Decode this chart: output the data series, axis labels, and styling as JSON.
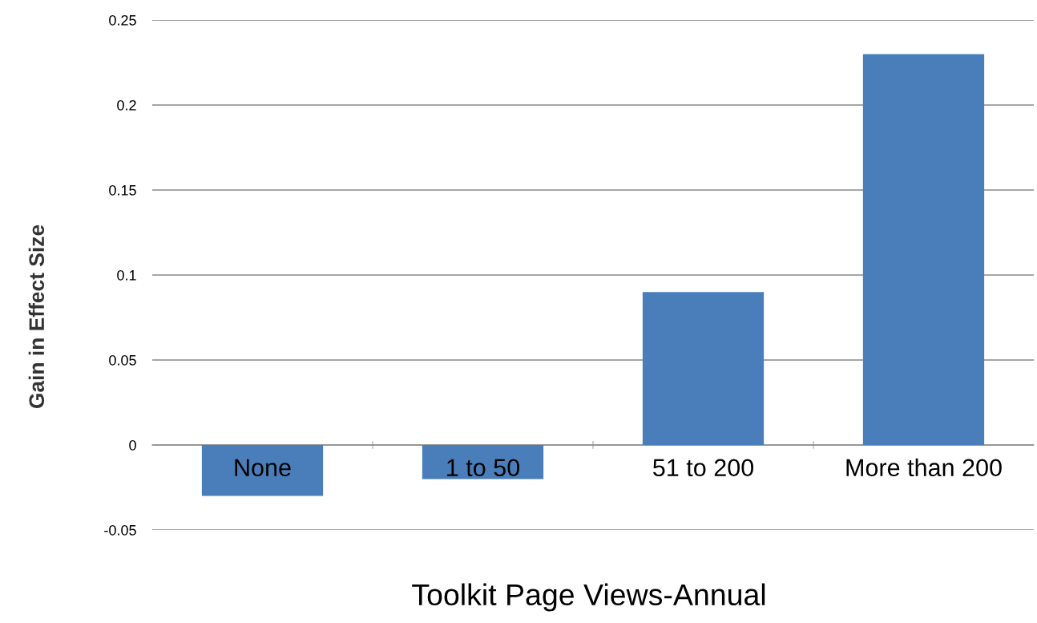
{
  "chart_data": {
    "type": "bar",
    "xlabel": "Toolkit Page Views-Annual",
    "ylabel": "Gain in Effect Size",
    "categories": [
      "None",
      "1 to 50",
      "51 to 200",
      "More than 200"
    ],
    "values": [
      -0.03,
      -0.02,
      0.09,
      0.23
    ],
    "color": "#4a7ebb",
    "ylim": [
      -0.05,
      0.25
    ],
    "yticks": [
      -0.05,
      0,
      0.05,
      0.1,
      0.15,
      0.2,
      0.25
    ],
    "grid": "y"
  }
}
